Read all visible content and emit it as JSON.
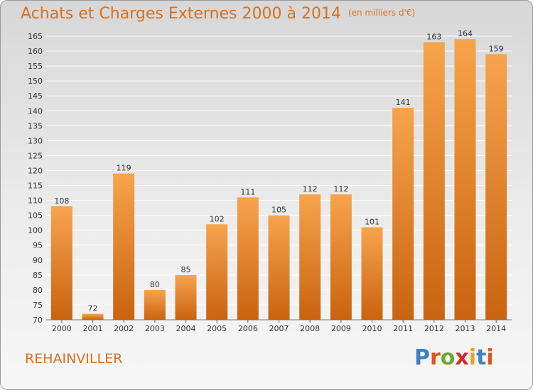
{
  "header": {
    "title": "Achats et Charges Externes 2000 à 2014",
    "unit": "(en milliers d'€)"
  },
  "footer": {
    "commune": "REHAINVILLER",
    "brand": "Proxiti",
    "brand_colors": [
      "#3f82c4",
      "#e0541c",
      "#6cab2f",
      "#d62a2a",
      "#e8a424",
      "#3f82c4",
      "#e0541c"
    ]
  },
  "colors": {
    "bar_light": "#f6a24a",
    "bar_dark": "#cc6712",
    "title": "#d8701f",
    "grid": "#ffffff"
  },
  "chart_data": {
    "type": "bar",
    "title": "Achats et Charges Externes 2000 à 2014",
    "subtitle": "(en milliers d'€)",
    "xlabel": "",
    "ylabel": "",
    "categories": [
      "2000",
      "2001",
      "2002",
      "2003",
      "2004",
      "2005",
      "2006",
      "2007",
      "2008",
      "2009",
      "2010",
      "2011",
      "2012",
      "2013",
      "2014"
    ],
    "values": [
      108,
      72,
      119,
      80,
      85,
      102,
      111,
      105,
      112,
      112,
      101,
      141,
      163,
      164,
      159
    ],
    "ylim": [
      70,
      165
    ],
    "yticks": [
      70,
      75,
      80,
      85,
      90,
      95,
      100,
      105,
      110,
      115,
      120,
      125,
      130,
      135,
      140,
      145,
      150,
      155,
      160,
      165
    ],
    "grid": true,
    "legend": "none"
  }
}
